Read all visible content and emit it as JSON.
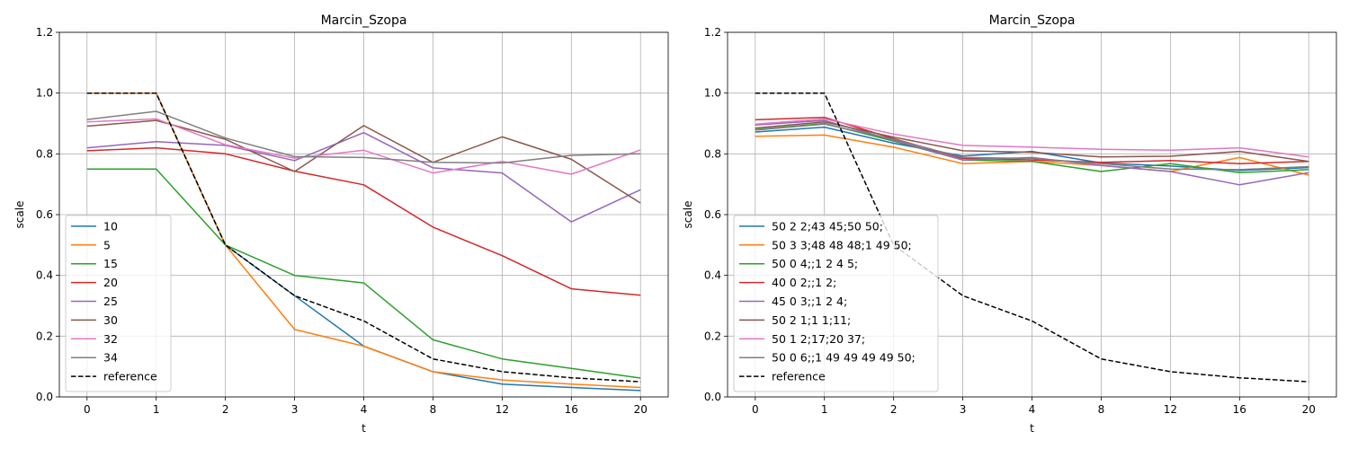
{
  "chart_data": [
    {
      "type": "line",
      "title": "Marcin_Szopa",
      "xlabel": "t",
      "ylabel": "scale",
      "categories": [
        "0",
        "1",
        "2",
        "3",
        "4",
        "8",
        "12",
        "16",
        "20"
      ],
      "ylim": [
        0,
        1.2
      ],
      "yticks": [
        "0.0",
        "0.2",
        "0.4",
        "0.6",
        "0.8",
        "1.0",
        "1.2"
      ],
      "grid": true,
      "legend_position": "lower-left",
      "series": [
        {
          "name": "10",
          "color": "#1f77b4",
          "dashed": false,
          "values": [
            1.0,
            1.0,
            0.5,
            0.333,
            0.167,
            0.083,
            0.042,
            0.031,
            0.021
          ]
        },
        {
          "name": "5",
          "color": "#ff7f0e",
          "dashed": false,
          "values": [
            1.0,
            1.0,
            0.5,
            0.222,
            0.167,
            0.083,
            0.056,
            0.042,
            0.031
          ]
        },
        {
          "name": "15",
          "color": "#2ca02c",
          "dashed": false,
          "values": [
            0.75,
            0.75,
            0.5,
            0.4,
            0.375,
            0.188,
            0.125,
            0.094,
            0.062
          ]
        },
        {
          "name": "20",
          "color": "#d62728",
          "dashed": false,
          "values": [
            0.81,
            0.82,
            0.8,
            0.743,
            0.698,
            0.559,
            0.465,
            0.356,
            0.335
          ]
        },
        {
          "name": "25",
          "color": "#9467bd",
          "dashed": false,
          "values": [
            0.82,
            0.84,
            0.828,
            0.778,
            0.87,
            0.754,
            0.737,
            0.576,
            0.682
          ]
        },
        {
          "name": "30",
          "color": "#8c564b",
          "dashed": false,
          "values": [
            0.891,
            0.91,
            0.848,
            0.742,
            0.893,
            0.772,
            0.856,
            0.782,
            0.638
          ]
        },
        {
          "name": "32",
          "color": "#e377c2",
          "dashed": false,
          "values": [
            0.905,
            0.915,
            0.83,
            0.786,
            0.812,
            0.737,
            0.775,
            0.733,
            0.813
          ]
        },
        {
          "name": "34",
          "color": "#7f7f7f",
          "dashed": false,
          "values": [
            0.913,
            0.94,
            0.852,
            0.791,
            0.788,
            0.772,
            0.77,
            0.795,
            0.8
          ]
        },
        {
          "name": "reference",
          "color": "#000000",
          "dashed": true,
          "values": [
            1.0,
            1.0,
            0.5,
            0.333,
            0.25,
            0.125,
            0.083,
            0.063,
            0.05
          ]
        }
      ]
    },
    {
      "type": "line",
      "title": "Marcin_Szopa",
      "xlabel": "t",
      "ylabel": "scale",
      "categories": [
        "0",
        "1",
        "2",
        "3",
        "4",
        "8",
        "12",
        "16",
        "20"
      ],
      "ylim": [
        0,
        1.2
      ],
      "yticks": [
        "0.0",
        "0.2",
        "0.4",
        "0.6",
        "0.8",
        "1.0",
        "1.2"
      ],
      "grid": true,
      "legend_position": "lower-left",
      "series": [
        {
          "name": "50 2 2;43 45;50 50;",
          "color": "#1f77b4",
          "dashed": false,
          "values": [
            0.872,
            0.888,
            0.835,
            0.793,
            0.808,
            0.77,
            0.76,
            0.745,
            0.755
          ]
        },
        {
          "name": "50 3 3;48 48 48;1 49 50;",
          "color": "#ff7f0e",
          "dashed": false,
          "values": [
            0.858,
            0.862,
            0.822,
            0.768,
            0.775,
            0.762,
            0.742,
            0.788,
            0.73
          ]
        },
        {
          "name": "50 0 4;;1 2 4 5;",
          "color": "#2ca02c",
          "dashed": false,
          "values": [
            0.88,
            0.9,
            0.842,
            0.78,
            0.775,
            0.742,
            0.768,
            0.738,
            0.748
          ]
        },
        {
          "name": "40 0 2;;1 2;",
          "color": "#d62728",
          "dashed": false,
          "values": [
            0.912,
            0.92,
            0.85,
            0.785,
            0.78,
            0.772,
            0.778,
            0.768,
            0.775
          ]
        },
        {
          "name": "45 0 3;;1 2 4;",
          "color": "#9467bd",
          "dashed": false,
          "values": [
            0.895,
            0.91,
            0.845,
            0.78,
            0.788,
            0.762,
            0.742,
            0.698,
            0.738
          ]
        },
        {
          "name": "50 2 1;1 1;11;",
          "color": "#8c564b",
          "dashed": false,
          "values": [
            0.885,
            0.905,
            0.855,
            0.81,
            0.805,
            0.79,
            0.792,
            0.808,
            0.775
          ]
        },
        {
          "name": "50 1 2;17;20 37;",
          "color": "#e377c2",
          "dashed": false,
          "values": [
            0.898,
            0.915,
            0.865,
            0.828,
            0.822,
            0.815,
            0.812,
            0.82,
            0.79
          ]
        },
        {
          "name": "50 0 6;;1 49 49 49 49 50;",
          "color": "#7f7f7f",
          "dashed": false,
          "values": [
            0.878,
            0.898,
            0.848,
            0.788,
            0.785,
            0.768,
            0.75,
            0.748,
            0.758
          ]
        },
        {
          "name": "reference",
          "color": "#000000",
          "dashed": true,
          "values": [
            1.0,
            1.0,
            0.5,
            0.333,
            0.25,
            0.125,
            0.083,
            0.063,
            0.05
          ]
        }
      ]
    }
  ]
}
